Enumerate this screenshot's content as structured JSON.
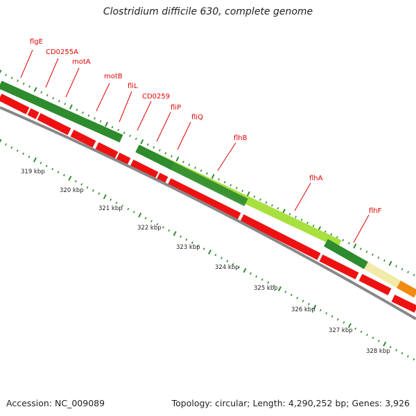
{
  "title": "Clostridium difficile 630, complete genome",
  "footer": {
    "accession": "Accession: NC_009089",
    "summary": "Topology: circular; Length: 4,290,252 bp; Genes: 3,926"
  },
  "colors": {
    "label": "#dd0000",
    "leader": "#dd0000",
    "cds": "#ee1111",
    "feature_dark_green": "#2e8b2e",
    "feature_light_green": "#a8e040",
    "feature_pale_yellow": "#f2eaa8",
    "feature_orange": "#f08a10",
    "backbone": "#888888",
    "scale_dots": "#2e8b2e"
  },
  "gene_labels": [
    "flgE",
    "CD0255A",
    "motA",
    "motB",
    "fliL",
    "CD0259",
    "fliP",
    "fliQ",
    "flhB",
    "flhA",
    "flhF"
  ],
  "scale_labels": [
    "319 kbp",
    "320 kbp",
    "321 kbp",
    "322 kbp",
    "323 kbp",
    "324 kbp",
    "325 kbp",
    "326 kbp",
    "327 kbp",
    "328 kbp"
  ]
}
